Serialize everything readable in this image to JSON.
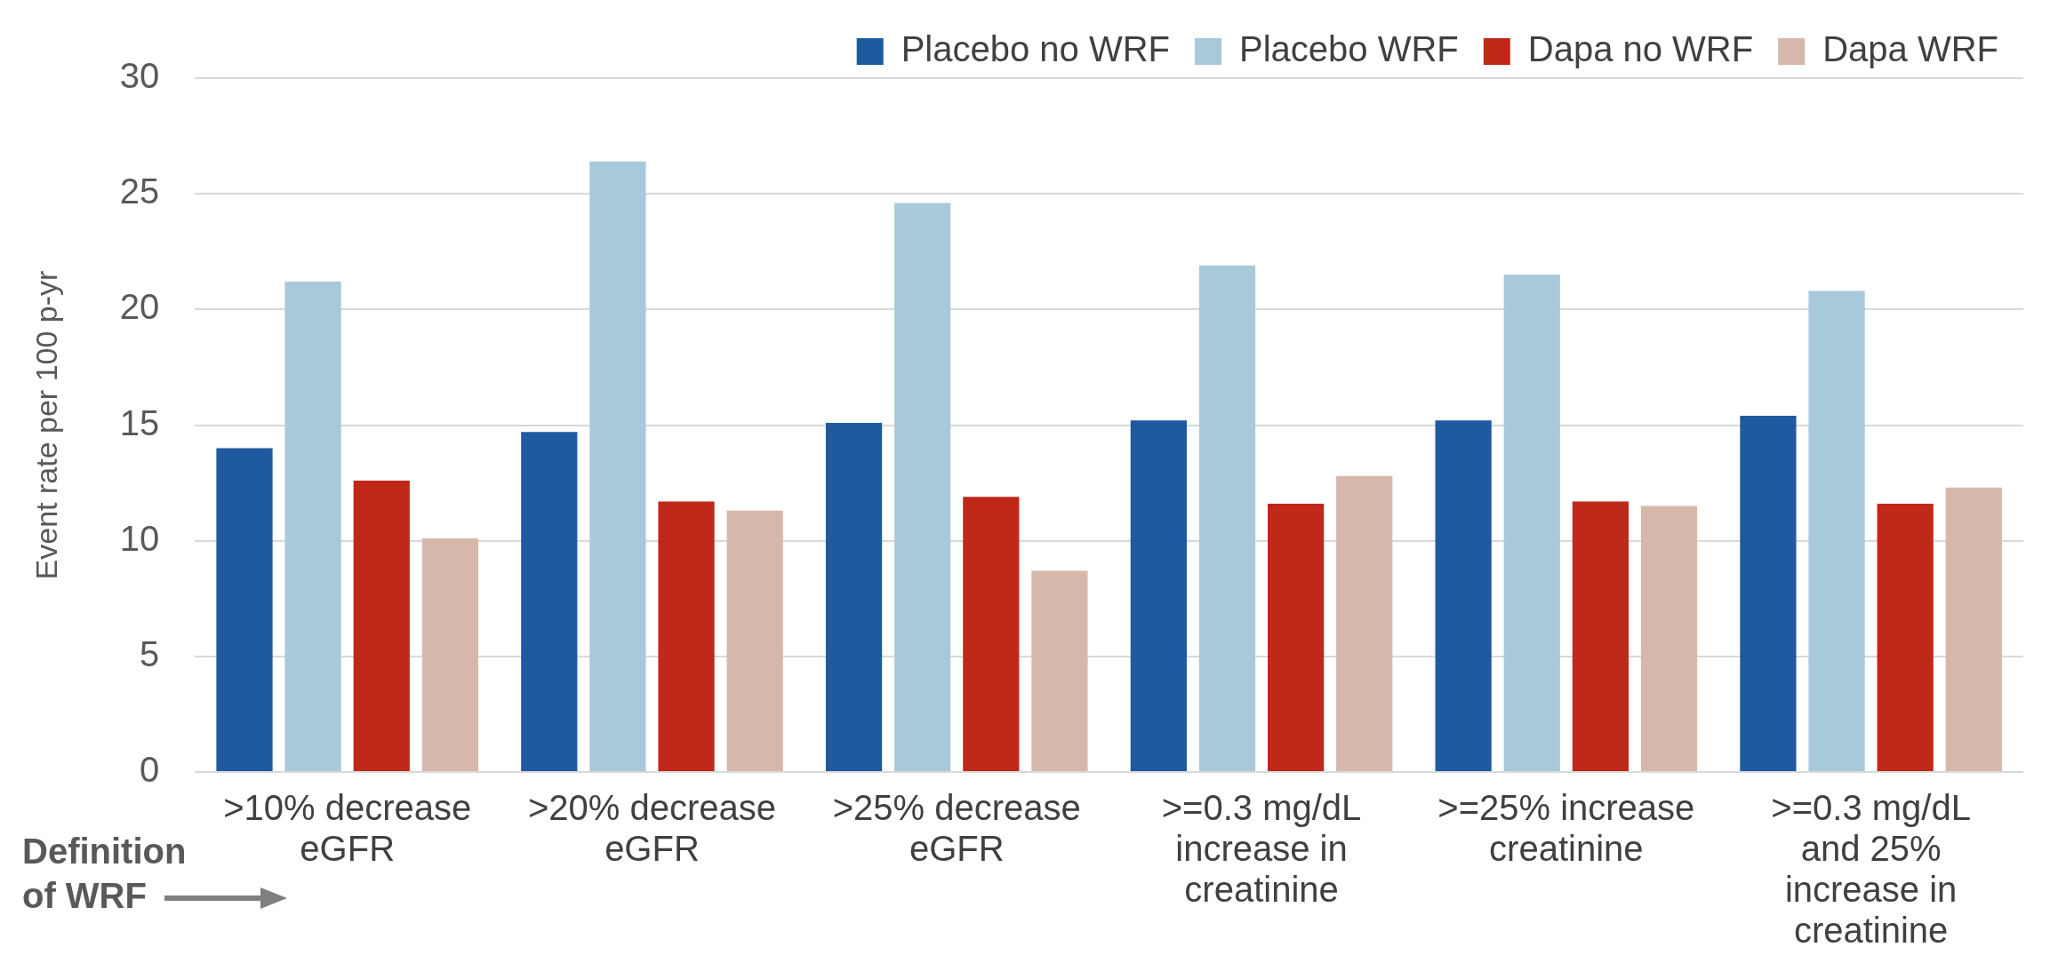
{
  "chart_data": {
    "type": "bar",
    "ylabel": "Event rate per 100 p-yr",
    "categories": [
      ">10% decrease eGFR",
      ">20% decrease eGFR",
      ">25% decrease eGFR",
      ">=0.3 mg/dL increase in creatinine",
      ">=25% increase creatinine",
      ">=0.3 mg/dL and 25% increase in creatinine"
    ],
    "series": [
      {
        "name": "Placebo no WRF",
        "color": "#1f5aa0",
        "values": [
          14.0,
          14.7,
          15.1,
          15.2,
          15.2,
          15.4
        ]
      },
      {
        "name": "Placebo WRF",
        "color": "#a8c9d9",
        "values": [
          21.2,
          26.4,
          24.6,
          21.9,
          21.5,
          20.8
        ]
      },
      {
        "name": "Dapa no WRF",
        "color": "#c0281a",
        "values": [
          12.6,
          11.7,
          11.9,
          11.6,
          11.7,
          11.6
        ]
      },
      {
        "name": "Dapa WRF",
        "color": "#d6b8aa",
        "values": [
          10.1,
          11.3,
          8.7,
          12.8,
          11.5,
          12.3
        ]
      }
    ],
    "ylim": [
      0,
      30
    ],
    "yticks": [
      0,
      5,
      10,
      15,
      20,
      25,
      30
    ],
    "grid": "y",
    "legend": "top right",
    "annotations": [
      "Definition of WRF"
    ]
  }
}
